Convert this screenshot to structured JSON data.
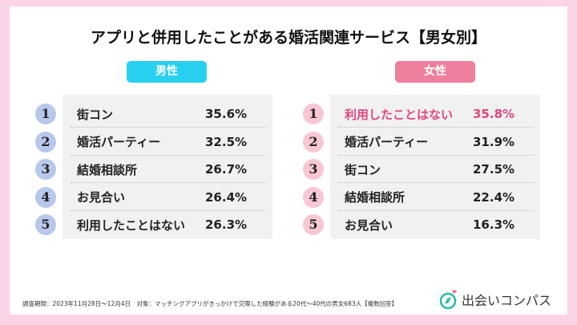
{
  "title": "アプリと併用したことがある婚活関連サービス【男女別】",
  "male": {
    "label": "男性",
    "items": [
      {
        "rank": "1",
        "name": "街コン",
        "value": "35.6%"
      },
      {
        "rank": "2",
        "name": "婚活パーティー",
        "value": "32.5%"
      },
      {
        "rank": "3",
        "name": "結婚相談所",
        "value": "26.7%"
      },
      {
        "rank": "4",
        "name": "お見合い",
        "value": "26.4%"
      },
      {
        "rank": "5",
        "name": "利用したことはない",
        "value": "26.3%"
      }
    ]
  },
  "female": {
    "label": "女性",
    "items": [
      {
        "rank": "1",
        "name": "利用したことはない",
        "value": "35.8%"
      },
      {
        "rank": "2",
        "name": "婚活パーティー",
        "value": "31.9%"
      },
      {
        "rank": "3",
        "name": "街コン",
        "value": "27.5%"
      },
      {
        "rank": "4",
        "name": "結婚相談所",
        "value": "22.4%"
      },
      {
        "rank": "5",
        "name": "お見合い",
        "value": "16.3%"
      }
    ]
  },
  "footnote": "調査期間：2023年11月28日〜12月4日　対象：マッチングアプリがきっかけで交際した経験がある20代〜40代の男女683人【複数回答】",
  "logo": {
    "text": "出会いコンパス",
    "icon": "compass-icon"
  },
  "colors": {
    "male": "#28d0f0",
    "female": "#ee7f9d",
    "highlight": "#e0457f",
    "background": "#fbd3e6"
  }
}
